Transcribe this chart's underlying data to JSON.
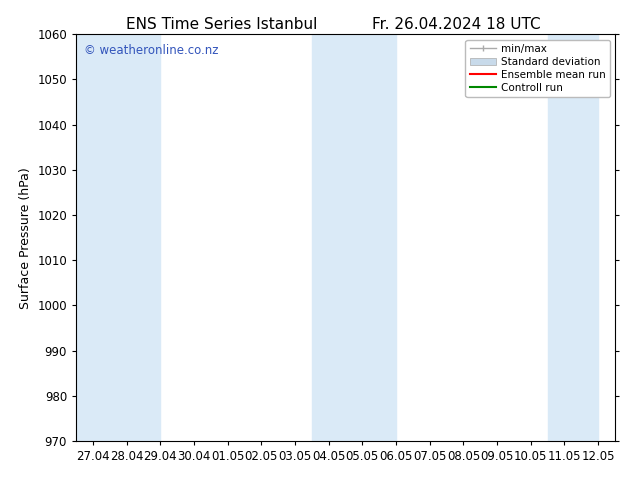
{
  "title_left": "ENS Time Series Istanbul",
  "title_right": "Fr. 26.04.2024 18 UTC",
  "ylabel": "Surface Pressure (hPa)",
  "ylim": [
    970,
    1060
  ],
  "yticks": [
    970,
    980,
    990,
    1000,
    1010,
    1020,
    1030,
    1040,
    1050,
    1060
  ],
  "x_labels": [
    "27.04",
    "28.04",
    "29.04",
    "30.04",
    "01.05",
    "02.05",
    "03.05",
    "04.05",
    "05.05",
    "06.05",
    "07.05",
    "08.05",
    "09.05",
    "10.05",
    "11.05",
    "12.05"
  ],
  "background_color": "#ffffff",
  "shaded_band_color": "#daeaf7",
  "watermark": "© weatheronline.co.nz",
  "watermark_color": "#3355bb",
  "legend_entries": [
    "min/max",
    "Standard deviation",
    "Ensemble mean run",
    "Controll run"
  ],
  "minmax_color": "#aaaaaa",
  "std_color": "#c8daea",
  "ensemble_color": "#ff0000",
  "control_color": "#008800",
  "title_fontsize": 11,
  "label_fontsize": 9,
  "tick_fontsize": 8.5,
  "shaded_ranges": [
    [
      0,
      2.5
    ],
    [
      7.0,
      9.5
    ],
    [
      14.0,
      15.5
    ]
  ]
}
